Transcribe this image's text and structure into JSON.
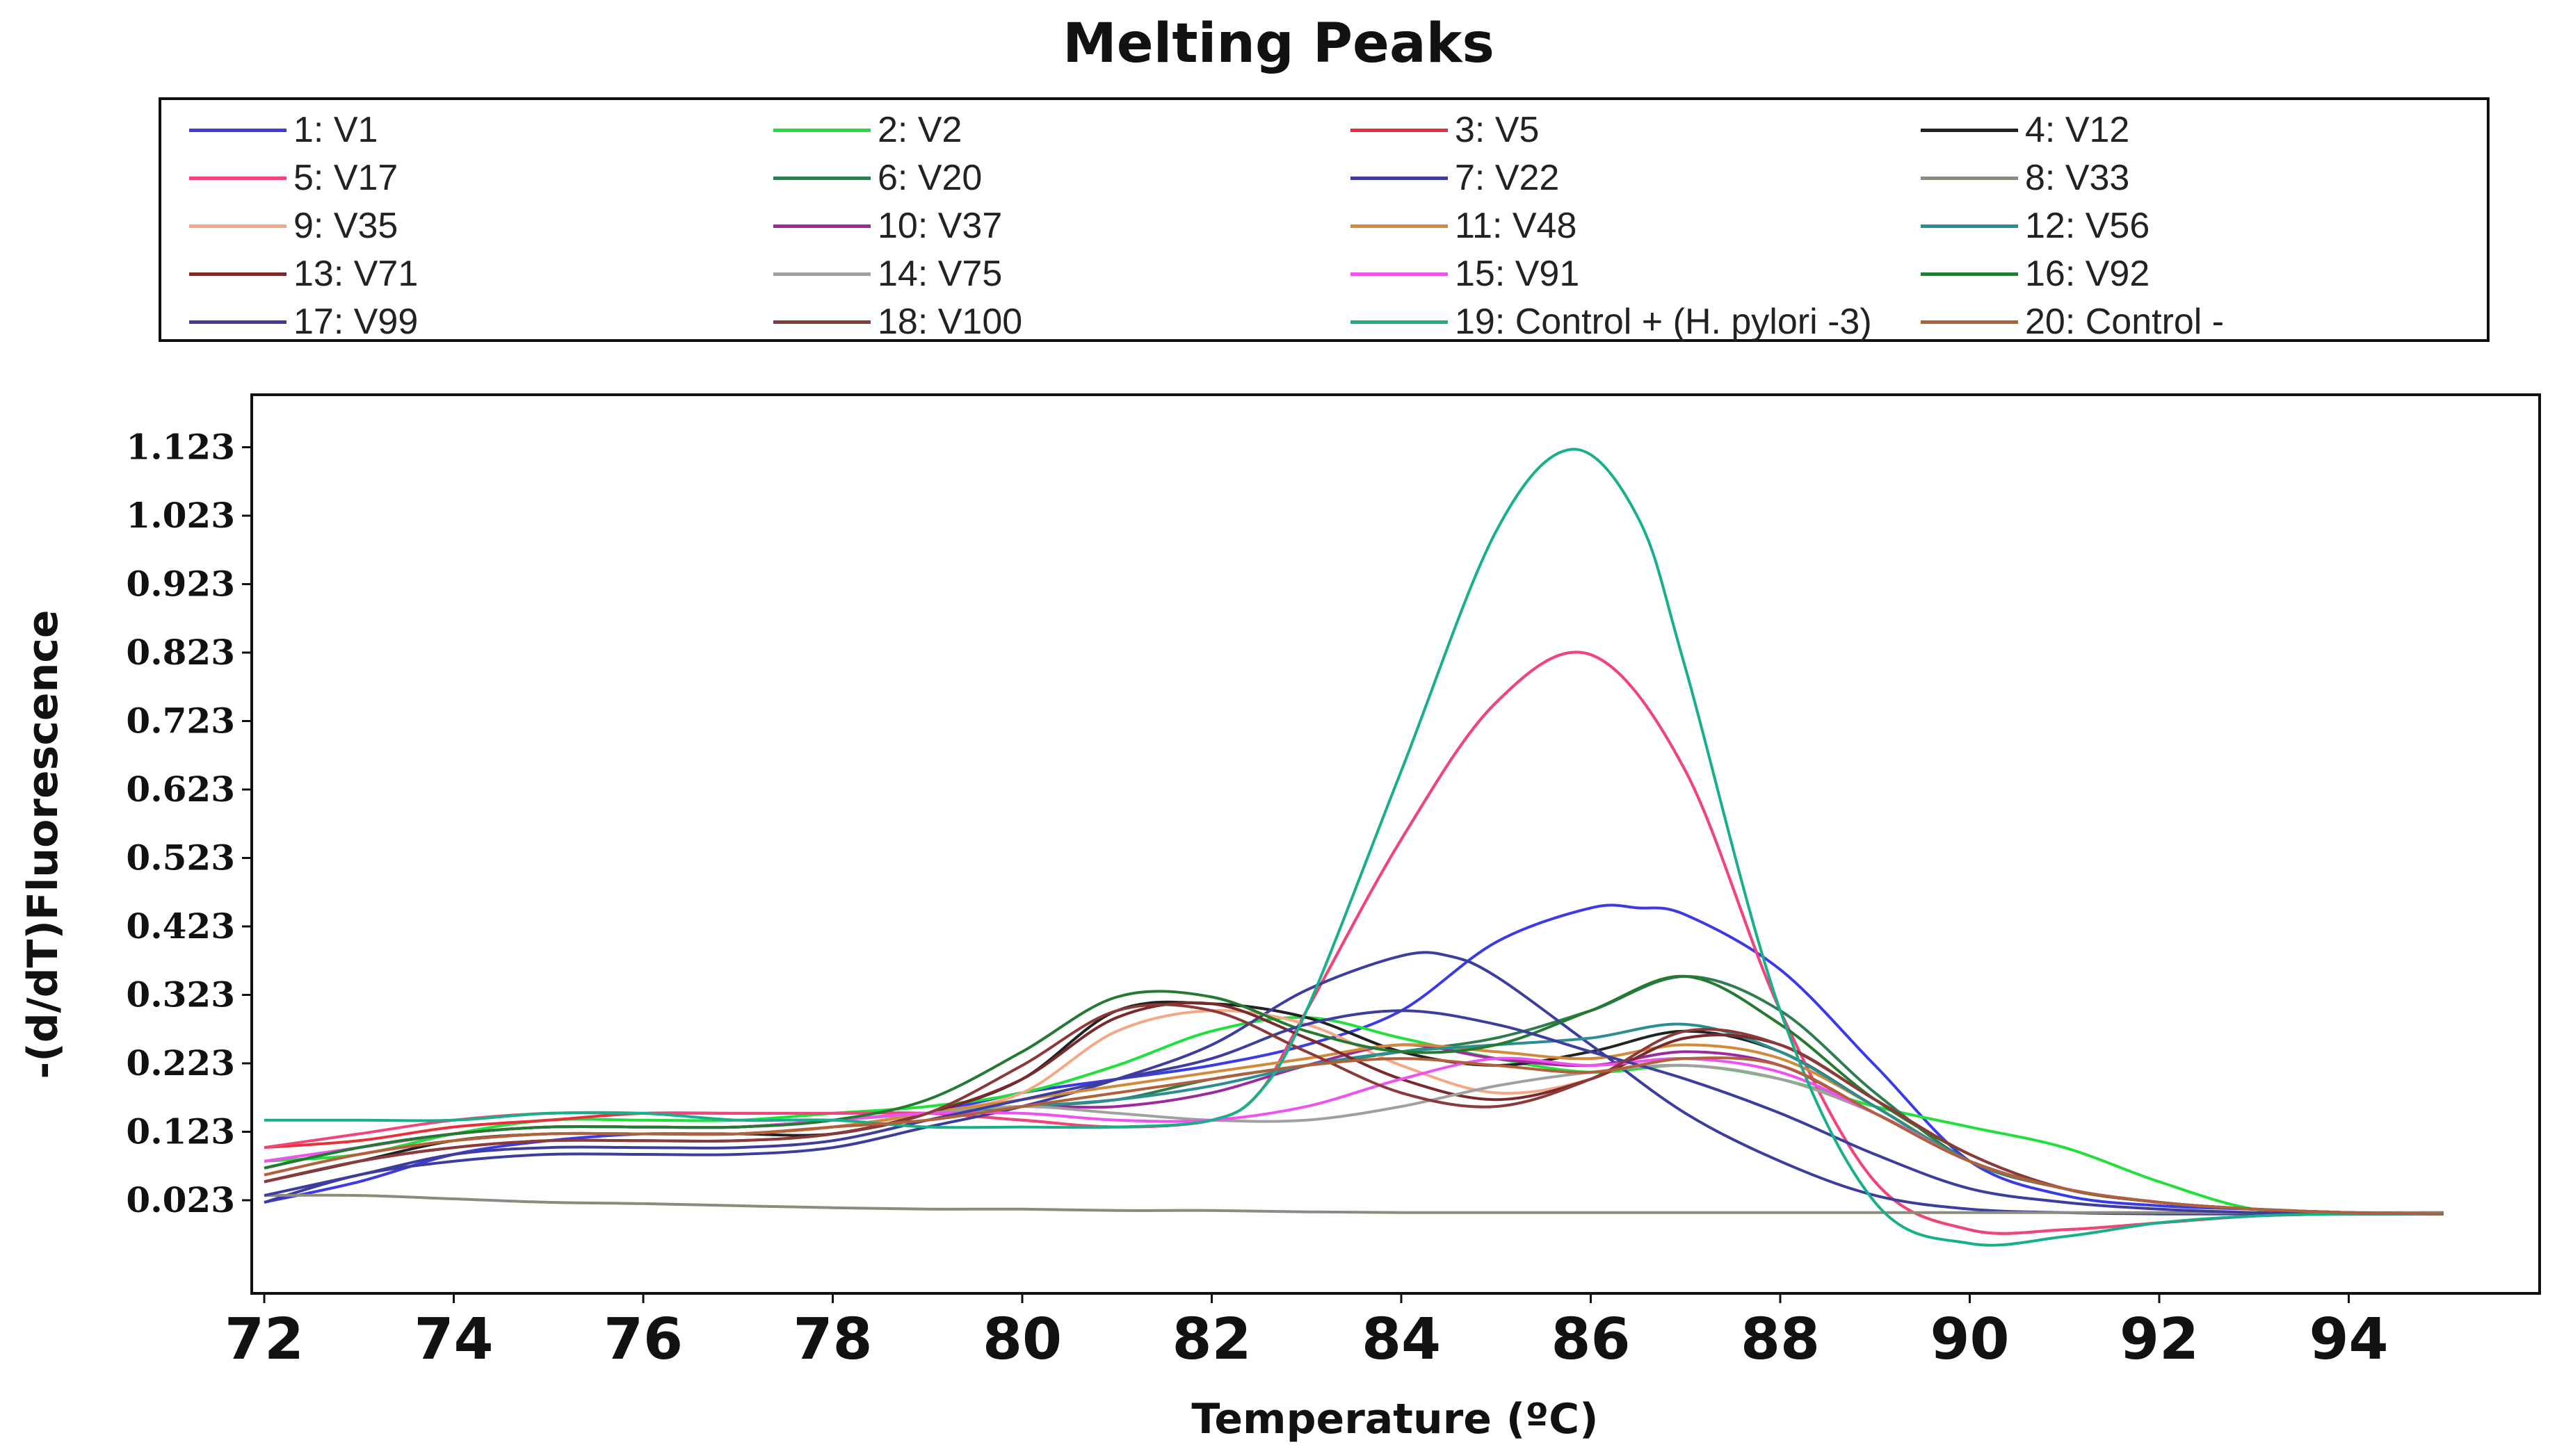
{
  "chart_data": {
    "type": "line",
    "title": "Melting Peaks",
    "xlabel": "Temperature (ºC)",
    "ylabel": "-(d/dT)Fluorescence",
    "xlim": [
      72,
      95
    ],
    "ylim": [
      -0.07,
      1.17
    ],
    "xticks": [
      72,
      74,
      76,
      78,
      80,
      82,
      84,
      86,
      88,
      90,
      92,
      94
    ],
    "xtick_labels": [
      "72",
      "74",
      "76",
      "78",
      "80",
      "82",
      "84",
      "86",
      "88",
      "90",
      "92",
      "94"
    ],
    "yticks": [
      0.023,
      0.123,
      0.223,
      0.323,
      0.423,
      0.523,
      0.623,
      0.723,
      0.823,
      0.923,
      1.023,
      1.123
    ],
    "ytick_labels": [
      "0.023",
      "0.123",
      "0.223",
      "0.323",
      "0.423",
      "0.523",
      "0.623",
      "0.723",
      "0.823",
      "0.923",
      "1.023",
      "1.123"
    ],
    "grid": false,
    "legend_position": "top",
    "series": [
      {
        "name": "1: V1",
        "color": "#3a3ae8",
        "x": [
          72,
          73,
          74,
          75,
          76,
          77,
          78,
          79,
          80,
          81,
          82,
          83,
          84,
          85,
          86,
          86.5,
          87,
          88,
          89,
          90,
          91,
          92,
          93,
          94,
          95
        ],
        "y": [
          0.02,
          0.05,
          0.09,
          0.11,
          0.12,
          0.12,
          0.13,
          0.15,
          0.18,
          0.2,
          0.22,
          0.25,
          0.3,
          0.4,
          0.45,
          0.45,
          0.44,
          0.36,
          0.22,
          0.08,
          0.03,
          0.015,
          0.01,
          0.005,
          0.005
        ]
      },
      {
        "name": "2: V2",
        "color": "#22e03c",
        "x": [
          72,
          73,
          74,
          75,
          76,
          77,
          78,
          79,
          80,
          81,
          82,
          83,
          84,
          85,
          86,
          87,
          88,
          89,
          90,
          91,
          92,
          93,
          94,
          95
        ],
        "y": [
          0.08,
          0.09,
          0.12,
          0.14,
          0.14,
          0.14,
          0.15,
          0.16,
          0.18,
          0.22,
          0.27,
          0.29,
          0.26,
          0.23,
          0.21,
          0.22,
          0.2,
          0.16,
          0.13,
          0.1,
          0.05,
          0.01,
          0.005,
          0.003
        ]
      },
      {
        "name": "3: V5",
        "color": "#e8303a",
        "x": [
          72,
          73,
          74,
          75,
          76,
          77,
          78,
          79,
          80,
          81,
          82,
          82.5,
          83,
          84,
          85,
          86,
          87,
          88,
          89,
          90,
          91,
          92,
          93,
          94,
          95
        ],
        "y": [
          0.1,
          0.11,
          0.13,
          0.14,
          0.15,
          0.15,
          0.15,
          0.15,
          0.14,
          0.13,
          0.14,
          0.18,
          0.3,
          0.55,
          0.75,
          0.82,
          0.65,
          0.3,
          0.05,
          -0.02,
          -0.02,
          -0.01,
          0,
          0.003,
          0.003
        ]
      },
      {
        "name": "4: V12",
        "color": "#222222",
        "x": [
          72,
          73,
          74,
          75,
          76,
          77,
          78,
          79,
          80,
          81,
          82,
          83,
          84,
          85,
          86,
          87,
          88,
          89,
          90,
          91,
          92,
          93,
          94,
          95
        ],
        "y": [
          0.05,
          0.08,
          0.11,
          0.12,
          0.12,
          0.12,
          0.12,
          0.15,
          0.2,
          0.3,
          0.31,
          0.29,
          0.24,
          0.22,
          0.24,
          0.27,
          0.24,
          0.16,
          0.08,
          0.04,
          0.02,
          0.01,
          0.005,
          0.003
        ]
      },
      {
        "name": "5: V17",
        "color": "#f0457a",
        "x": [
          72,
          73,
          74,
          75,
          76,
          77,
          78,
          79,
          80,
          81,
          82,
          82.5,
          83,
          84,
          85,
          86,
          87,
          88,
          89,
          90,
          91,
          92,
          93,
          94,
          95
        ],
        "y": [
          0.1,
          0.12,
          0.14,
          0.15,
          0.15,
          0.15,
          0.15,
          0.15,
          0.14,
          0.13,
          0.14,
          0.18,
          0.3,
          0.55,
          0.75,
          0.82,
          0.65,
          0.3,
          0.05,
          -0.02,
          -0.02,
          -0.01,
          0,
          0.003,
          0.003
        ]
      },
      {
        "name": "6: V20",
        "color": "#2e7d4e",
        "x": [
          72,
          73,
          74,
          75,
          76,
          77,
          78,
          79,
          80,
          81,
          82,
          83,
          84,
          85,
          86,
          87,
          88,
          89,
          90,
          91,
          92,
          93,
          94,
          95
        ],
        "y": [
          0.08,
          0.1,
          0.12,
          0.13,
          0.13,
          0.13,
          0.14,
          0.15,
          0.16,
          0.17,
          0.2,
          0.22,
          0.24,
          0.26,
          0.3,
          0.35,
          0.3,
          0.18,
          0.08,
          0.04,
          0.02,
          0.01,
          0.005,
          0.003
        ]
      },
      {
        "name": "7: V22",
        "color": "#3d3d9e",
        "x": [
          72,
          73,
          74,
          75,
          76,
          77,
          78,
          79,
          80,
          81,
          82,
          83,
          84,
          84.5,
          85,
          86,
          87,
          88,
          89,
          90,
          91,
          92,
          93,
          94,
          95
        ],
        "y": [
          0.02,
          0.06,
          0.08,
          0.09,
          0.09,
          0.09,
          0.1,
          0.13,
          0.16,
          0.2,
          0.25,
          0.33,
          0.38,
          0.38,
          0.35,
          0.25,
          0.15,
          0.08,
          0.03,
          0.01,
          0.005,
          0.003,
          0.003,
          0.003,
          0.003
        ]
      },
      {
        "name": "8: V33",
        "color": "#8c8c7e",
        "x": [
          72,
          73,
          74,
          75,
          76,
          77,
          78,
          79,
          80,
          81,
          82,
          83,
          84,
          85,
          86,
          87,
          88,
          89,
          90,
          91,
          92,
          93,
          94,
          95
        ],
        "y": [
          0.03,
          0.03,
          0.025,
          0.02,
          0.018,
          0.015,
          0.012,
          0.01,
          0.01,
          0.008,
          0.008,
          0.006,
          0.005,
          0.005,
          0.005,
          0.005,
          0.005,
          0.005,
          0.005,
          0.005,
          0.005,
          0.005,
          0.005,
          0.005
        ]
      },
      {
        "name": "9: V35",
        "color": "#f4a886",
        "x": [
          72,
          73,
          74,
          75,
          76,
          77,
          78,
          79,
          80,
          81,
          82,
          83,
          84,
          85,
          86,
          87,
          88,
          89,
          90,
          91,
          92,
          93,
          94,
          95
        ],
        "y": [
          0.06,
          0.09,
          0.11,
          0.12,
          0.12,
          0.12,
          0.13,
          0.15,
          0.18,
          0.27,
          0.3,
          0.28,
          0.22,
          0.18,
          0.2,
          0.26,
          0.25,
          0.17,
          0.09,
          0.04,
          0.02,
          0.01,
          0.005,
          0.003
        ]
      },
      {
        "name": "10: V37",
        "color": "#9c2a9c",
        "x": [
          72,
          73,
          74,
          75,
          76,
          77,
          78,
          79,
          80,
          81,
          82,
          83,
          84,
          85,
          86,
          87,
          88,
          89,
          90,
          91,
          92,
          93,
          94,
          95
        ],
        "y": [
          0.07,
          0.1,
          0.12,
          0.13,
          0.13,
          0.13,
          0.14,
          0.15,
          0.16,
          0.16,
          0.18,
          0.22,
          0.25,
          0.23,
          0.22,
          0.24,
          0.22,
          0.15,
          0.08,
          0.04,
          0.02,
          0.01,
          0.005,
          0.003
        ]
      },
      {
        "name": "11: V48",
        "color": "#d08a3a",
        "x": [
          72,
          73,
          74,
          75,
          76,
          77,
          78,
          79,
          80,
          81,
          82,
          83,
          84,
          85,
          86,
          87,
          88,
          89,
          90,
          91,
          92,
          93,
          94,
          95
        ],
        "y": [
          0.06,
          0.09,
          0.11,
          0.12,
          0.12,
          0.12,
          0.13,
          0.15,
          0.17,
          0.19,
          0.21,
          0.23,
          0.25,
          0.24,
          0.23,
          0.25,
          0.23,
          0.16,
          0.08,
          0.04,
          0.02,
          0.01,
          0.005,
          0.003
        ]
      },
      {
        "name": "12: V56",
        "color": "#2c8e8e",
        "x": [
          72,
          73,
          74,
          75,
          76,
          77,
          78,
          79,
          80,
          81,
          82,
          83,
          84,
          85,
          86,
          87,
          88,
          89,
          90,
          91,
          92,
          93,
          94,
          95
        ],
        "y": [
          0.07,
          0.1,
          0.12,
          0.13,
          0.13,
          0.13,
          0.14,
          0.15,
          0.16,
          0.17,
          0.19,
          0.22,
          0.24,
          0.25,
          0.26,
          0.28,
          0.24,
          0.16,
          0.08,
          0.04,
          0.02,
          0.01,
          0.005,
          0.003
        ]
      },
      {
        "name": "13: V71",
        "color": "#7a2a2a",
        "x": [
          72,
          73,
          74,
          75,
          76,
          77,
          78,
          79,
          80,
          81,
          82,
          83,
          84,
          85,
          86,
          87,
          88,
          89,
          90,
          91,
          92,
          93,
          94,
          95
        ],
        "y": [
          0.05,
          0.08,
          0.1,
          0.11,
          0.11,
          0.11,
          0.12,
          0.15,
          0.2,
          0.29,
          0.31,
          0.26,
          0.2,
          0.17,
          0.2,
          0.26,
          0.25,
          0.17,
          0.09,
          0.04,
          0.02,
          0.01,
          0.005,
          0.003
        ]
      },
      {
        "name": "14: V75",
        "color": "#a0a0a0",
        "x": [
          72,
          73,
          74,
          75,
          76,
          77,
          78,
          79,
          80,
          81,
          82,
          83,
          84,
          85,
          86,
          87,
          88,
          89,
          90,
          91,
          92,
          93,
          94,
          95
        ],
        "y": [
          0.08,
          0.1,
          0.12,
          0.13,
          0.13,
          0.13,
          0.14,
          0.15,
          0.16,
          0.15,
          0.14,
          0.14,
          0.16,
          0.19,
          0.21,
          0.22,
          0.2,
          0.15,
          0.08,
          0.04,
          0.02,
          0.01,
          0.005,
          0.003
        ]
      },
      {
        "name": "15: V91",
        "color": "#f052f0",
        "x": [
          72,
          73,
          74,
          75,
          76,
          77,
          78,
          79,
          80,
          81,
          82,
          83,
          84,
          85,
          86,
          87,
          88,
          89,
          90,
          91,
          92,
          93,
          94,
          95
        ],
        "y": [
          0.08,
          0.1,
          0.12,
          0.13,
          0.13,
          0.13,
          0.14,
          0.15,
          0.15,
          0.14,
          0.14,
          0.16,
          0.2,
          0.23,
          0.22,
          0.23,
          0.21,
          0.15,
          0.08,
          0.04,
          0.02,
          0.01,
          0.005,
          0.003
        ]
      },
      {
        "name": "16: V92",
        "color": "#247a30",
        "x": [
          72,
          73,
          74,
          75,
          76,
          77,
          78,
          79,
          80,
          81,
          82,
          83,
          84,
          85,
          86,
          87,
          88,
          89,
          90,
          91,
          92,
          93,
          94,
          95
        ],
        "y": [
          0.07,
          0.1,
          0.12,
          0.13,
          0.13,
          0.13,
          0.14,
          0.17,
          0.24,
          0.32,
          0.32,
          0.27,
          0.24,
          0.25,
          0.3,
          0.35,
          0.28,
          0.17,
          0.09,
          0.04,
          0.02,
          0.01,
          0.005,
          0.003
        ]
      },
      {
        "name": "17: V99",
        "color": "#3d3d9e",
        "x": [
          72,
          73,
          74,
          75,
          76,
          77,
          78,
          79,
          80,
          81,
          82,
          83,
          84,
          85,
          86,
          87,
          88,
          89,
          90,
          91,
          92,
          93,
          94,
          95
        ],
        "y": [
          0.03,
          0.06,
          0.09,
          0.1,
          0.1,
          0.1,
          0.11,
          0.14,
          0.17,
          0.2,
          0.23,
          0.28,
          0.3,
          0.28,
          0.24,
          0.2,
          0.15,
          0.09,
          0.04,
          0.02,
          0.01,
          0.005,
          0.003,
          0.003
        ]
      },
      {
        "name": "18: V100",
        "color": "#8b3a3a",
        "x": [
          72,
          73,
          74,
          75,
          76,
          77,
          78,
          79,
          80,
          81,
          82,
          83,
          84,
          85,
          86,
          87,
          88,
          89,
          90,
          91,
          92,
          93,
          94,
          95
        ],
        "y": [
          0.05,
          0.08,
          0.1,
          0.11,
          0.11,
          0.11,
          0.12,
          0.15,
          0.22,
          0.3,
          0.3,
          0.24,
          0.18,
          0.16,
          0.2,
          0.27,
          0.25,
          0.17,
          0.09,
          0.04,
          0.02,
          0.01,
          0.005,
          0.003
        ]
      },
      {
        "name": "19: Control + (H. pylori -3)",
        "color": "#18b08a",
        "x": [
          72,
          73,
          74,
          75,
          76,
          77,
          78,
          79,
          80,
          81,
          82,
          82.5,
          83,
          84,
          85,
          85.8,
          86.5,
          87,
          88,
          89,
          90,
          91,
          92,
          93,
          94,
          95
        ],
        "y": [
          0.14,
          0.14,
          0.14,
          0.15,
          0.15,
          0.14,
          0.14,
          0.13,
          0.13,
          0.13,
          0.14,
          0.18,
          0.3,
          0.65,
          1.0,
          1.12,
          1.02,
          0.8,
          0.3,
          0.02,
          -0.04,
          -0.03,
          -0.01,
          0,
          0.003,
          0.003
        ]
      },
      {
        "name": "20: Control -",
        "color": "#b0603a",
        "x": [
          72,
          73,
          74,
          75,
          76,
          77,
          78,
          79,
          80,
          81,
          82,
          83,
          84,
          85,
          86,
          87,
          88,
          89,
          90,
          91,
          92,
          93,
          94,
          95
        ],
        "y": [
          0.06,
          0.09,
          0.11,
          0.12,
          0.12,
          0.12,
          0.13,
          0.14,
          0.16,
          0.18,
          0.2,
          0.22,
          0.23,
          0.22,
          0.21,
          0.23,
          0.22,
          0.15,
          0.08,
          0.04,
          0.02,
          0.01,
          0.005,
          0.003
        ]
      }
    ]
  }
}
